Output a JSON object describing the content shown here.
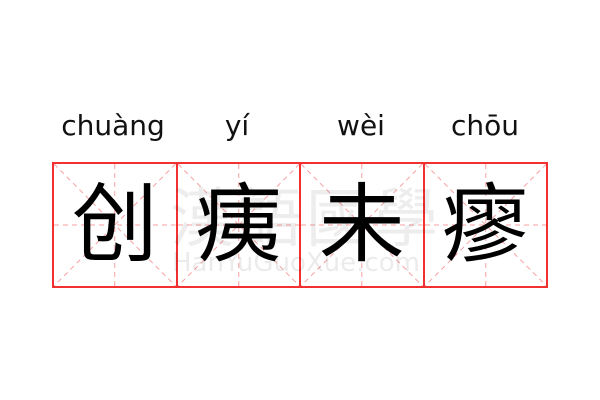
{
  "pinyin": [
    "chuàng",
    "yí",
    "wèi",
    "chōu"
  ],
  "characters": [
    "创",
    "痍",
    "未",
    "瘳"
  ],
  "watermark": {
    "chinese": "漢語國學",
    "latin": "HanYuGuoXue.com"
  },
  "colors": {
    "grid": "#f23030",
    "guide": "#f8a0a0"
  }
}
